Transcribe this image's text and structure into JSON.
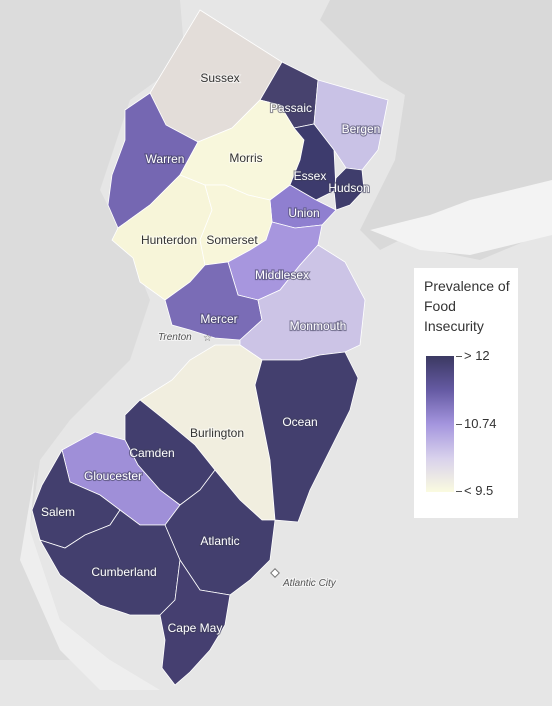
{
  "map": {
    "counties": [
      {
        "name": "Sussex",
        "color": "#e3ddd9",
        "label_style": "dark"
      },
      {
        "name": "Passaic",
        "color": "#47426e",
        "label_style": "light"
      },
      {
        "name": "Bergen",
        "color": "#c9c2e6",
        "label_style": "light"
      },
      {
        "name": "Warren",
        "color": "#7567b2",
        "label_style": "light"
      },
      {
        "name": "Morris",
        "color": "#f8f7dc",
        "label_style": "dark"
      },
      {
        "name": "Essex",
        "color": "#3d3b6d",
        "label_style": "light"
      },
      {
        "name": "Hudson",
        "color": "#3f3d6c",
        "label_style": "light"
      },
      {
        "name": "Union",
        "color": "#8f7fd0",
        "label_style": "light"
      },
      {
        "name": "Hunterdon",
        "color": "#f7f5d9",
        "label_style": "dark"
      },
      {
        "name": "Somerset",
        "color": "#f8f6da",
        "label_style": "dark"
      },
      {
        "name": "Middlesex",
        "color": "#a796de",
        "label_style": "light"
      },
      {
        "name": "Mercer",
        "color": "#7a6cb6",
        "label_style": "light"
      },
      {
        "name": "Monmouth",
        "color": "#ccc4e6",
        "label_style": "light"
      },
      {
        "name": "Ocean",
        "color": "#433f6e",
        "label_style": "light"
      },
      {
        "name": "Burlington",
        "color": "#f1eedf",
        "label_style": "dark"
      },
      {
        "name": "Camden",
        "color": "#423e6e",
        "label_style": "light"
      },
      {
        "name": "Gloucester",
        "color": "#9f8fd8",
        "label_style": "light"
      },
      {
        "name": "Salem",
        "color": "#433f6e",
        "label_style": "light"
      },
      {
        "name": "Atlantic",
        "color": "#433f6e",
        "label_style": "light"
      },
      {
        "name": "Cumberland",
        "color": "#433f6e",
        "label_style": "light"
      },
      {
        "name": "Cape May",
        "color": "#453f70",
        "label_style": "light"
      }
    ],
    "cities": [
      "Trenton",
      "Atlantic City"
    ]
  },
  "legend": {
    "title": "Prevalence of Food Insecurity",
    "high_label": "> 12",
    "mid_label": "10.74",
    "low_label": "< 9.5",
    "gradient_colors": [
      "#3b3962",
      "#655aa3",
      "#a495de",
      "#d8d1ec",
      "#fafbe0"
    ]
  }
}
